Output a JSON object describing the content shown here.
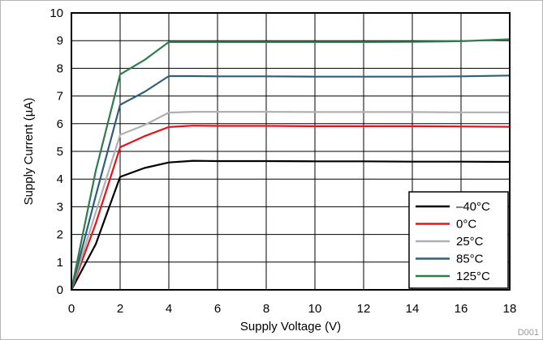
{
  "chart_data": {
    "type": "line",
    "xlabel": "Supply Voltage (V)",
    "ylabel": "Supply Current (µA)",
    "xlim": [
      0,
      18
    ],
    "ylim": [
      0,
      10
    ],
    "xticks": [
      0,
      2,
      4,
      6,
      8,
      10,
      12,
      14,
      16,
      18
    ],
    "yticks": [
      0,
      1,
      2,
      3,
      4,
      5,
      6,
      7,
      8,
      9,
      10
    ],
    "grid": true,
    "legend_position": "bottom-right",
    "figure_id": "D001",
    "series": [
      {
        "name": "–40°C",
        "color": "#000000",
        "x": [
          0,
          1,
          2,
          3,
          4,
          5,
          6,
          8,
          10,
          12,
          14,
          16,
          18
        ],
        "y": [
          0,
          1.65,
          4.08,
          4.4,
          4.6,
          4.66,
          4.65,
          4.65,
          4.64,
          4.64,
          4.63,
          4.63,
          4.62
        ]
      },
      {
        "name": "0°C",
        "color": "#e8121a",
        "x": [
          0,
          1,
          2,
          3,
          4,
          5,
          6,
          8,
          10,
          12,
          14,
          16,
          18
        ],
        "y": [
          0,
          2.4,
          5.15,
          5.55,
          5.88,
          5.93,
          5.92,
          5.92,
          5.91,
          5.91,
          5.91,
          5.9,
          5.89
        ]
      },
      {
        "name": "25°C",
        "color": "#b0b0b0",
        "x": [
          0,
          1,
          2,
          3,
          4,
          5,
          6,
          8,
          10,
          12,
          14,
          16,
          18
        ],
        "y": [
          0,
          2.8,
          5.6,
          5.95,
          6.4,
          6.43,
          6.43,
          6.43,
          6.42,
          6.42,
          6.42,
          6.41,
          6.41
        ]
      },
      {
        "name": "85°C",
        "color": "#2f5e7a",
        "x": [
          0,
          1,
          2,
          3,
          4,
          5,
          6,
          8,
          10,
          12,
          14,
          16,
          18
        ],
        "y": [
          0,
          3.4,
          6.68,
          7.15,
          7.72,
          7.72,
          7.71,
          7.71,
          7.7,
          7.7,
          7.7,
          7.71,
          7.74
        ]
      },
      {
        "name": "125°C",
        "color": "#2f7a4f",
        "x": [
          0,
          1,
          2,
          3,
          4,
          5,
          6,
          8,
          10,
          12,
          14,
          16,
          18
        ],
        "y": [
          0,
          4.3,
          7.78,
          8.3,
          8.95,
          8.95,
          8.95,
          8.95,
          8.95,
          8.95,
          8.96,
          8.98,
          9.05
        ]
      }
    ]
  }
}
